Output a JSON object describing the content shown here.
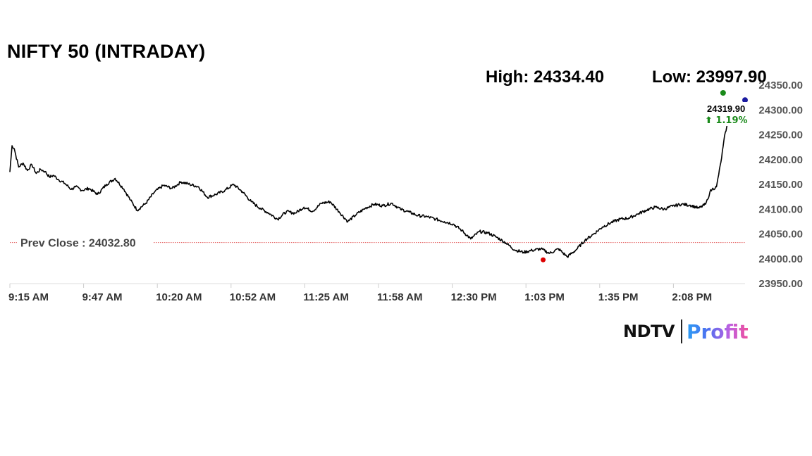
{
  "chart_data": {
    "type": "line",
    "title": "NIFTY 50 (INTRADAY)",
    "high_label": "High: 24334.40",
    "low_label": "Low: 23997.90",
    "prev_close_label": "Prev Close : 24032.80",
    "prev_close": 24032.8,
    "last_value_label": "24319.90",
    "change_label": "⬆ 1.19%",
    "ylim": [
      23950,
      24350
    ],
    "y_ticks": [
      "24350.00",
      "24300.00",
      "24250.00",
      "24200.00",
      "24150.00",
      "24100.00",
      "24050.00",
      "24000.00",
      "23950.00"
    ],
    "x_ticks": [
      "9:15 AM",
      "9:47 AM",
      "10:20 AM",
      "10:52 AM",
      "11:25 AM",
      "11:58 AM",
      "12:30 PM",
      "1:03 PM",
      "1:35 PM",
      "2:08 PM"
    ],
    "x_minutes_range": [
      0,
      335
    ],
    "series": [
      {
        "x": [
          0,
          1,
          2,
          4,
          6,
          8,
          10,
          12,
          14,
          16,
          18,
          20,
          22,
          25,
          28,
          30,
          33,
          36,
          40,
          44,
          48,
          52,
          55,
          58,
          62,
          66,
          70,
          74,
          78,
          82,
          86,
          90,
          94,
          98,
          102,
          106,
          110,
          114,
          118,
          122,
          126,
          130,
          134,
          138,
          142,
          146,
          150,
          154,
          158,
          162,
          166,
          170,
          174,
          178,
          182,
          186,
          190,
          194,
          198,
          202,
          206,
          210,
          214,
          218,
          222,
          226,
          230,
          234,
          238,
          242,
          246,
          250,
          254,
          258,
          262,
          266,
          270,
          274,
          278,
          282,
          286,
          290,
          294,
          298,
          302,
          306,
          310,
          314,
          317,
          318,
          319,
          320,
          322,
          324,
          326,
          328,
          329
        ],
        "values": [
          24175,
          24228,
          24222,
          24185,
          24193,
          24178,
          24190,
          24172,
          24180,
          24176,
          24165,
          24168,
          24160,
          24152,
          24140,
          24145,
          24138,
          24142,
          24130,
          24150,
          24162,
          24140,
          24118,
          24098,
          24112,
          24135,
          24148,
          24142,
          24155,
          24150,
          24145,
          24124,
          24130,
          24138,
          24150,
          24135,
          24115,
          24102,
          24092,
          24080,
          24095,
          24092,
          24104,
          24096,
          24112,
          24115,
          24095,
          24075,
          24090,
          24102,
          24110,
          24107,
          24112,
          24100,
          24094,
          24087,
          24085,
          24080,
          24075,
          24070,
          24057,
          24040,
          24055,
          24052,
          24043,
          24032,
          24018,
          24013,
          24017,
          24020,
          24011,
          24020,
          24004,
          24018,
          24037,
          24050,
          24064,
          24073,
          24080,
          24082,
          24090,
          24098,
          24104,
          24100,
          24106,
          24110,
          24108,
          24102,
          24110,
          24120,
          24135,
          24140,
          24145,
          24195,
          24255,
          24285,
          24310
        ]
      }
    ],
    "low_marker": {
      "x": 243,
      "value": 23997.9
    },
    "high_marker": {
      "x": 325,
      "value": 24334.4
    },
    "current_marker": {
      "x": 335,
      "value": 24319.9
    },
    "colors": {
      "line": "#000000",
      "prev_close": "#e15050",
      "grid": "#dddddd",
      "low_dot": "#dd0000",
      "high_dot": "#1a8a1a",
      "current_dot": "#1a1aa0",
      "change": "#1a8a1a"
    },
    "grid": true
  },
  "logo": {
    "ndtv": "NDTV",
    "profit": "Profit"
  }
}
